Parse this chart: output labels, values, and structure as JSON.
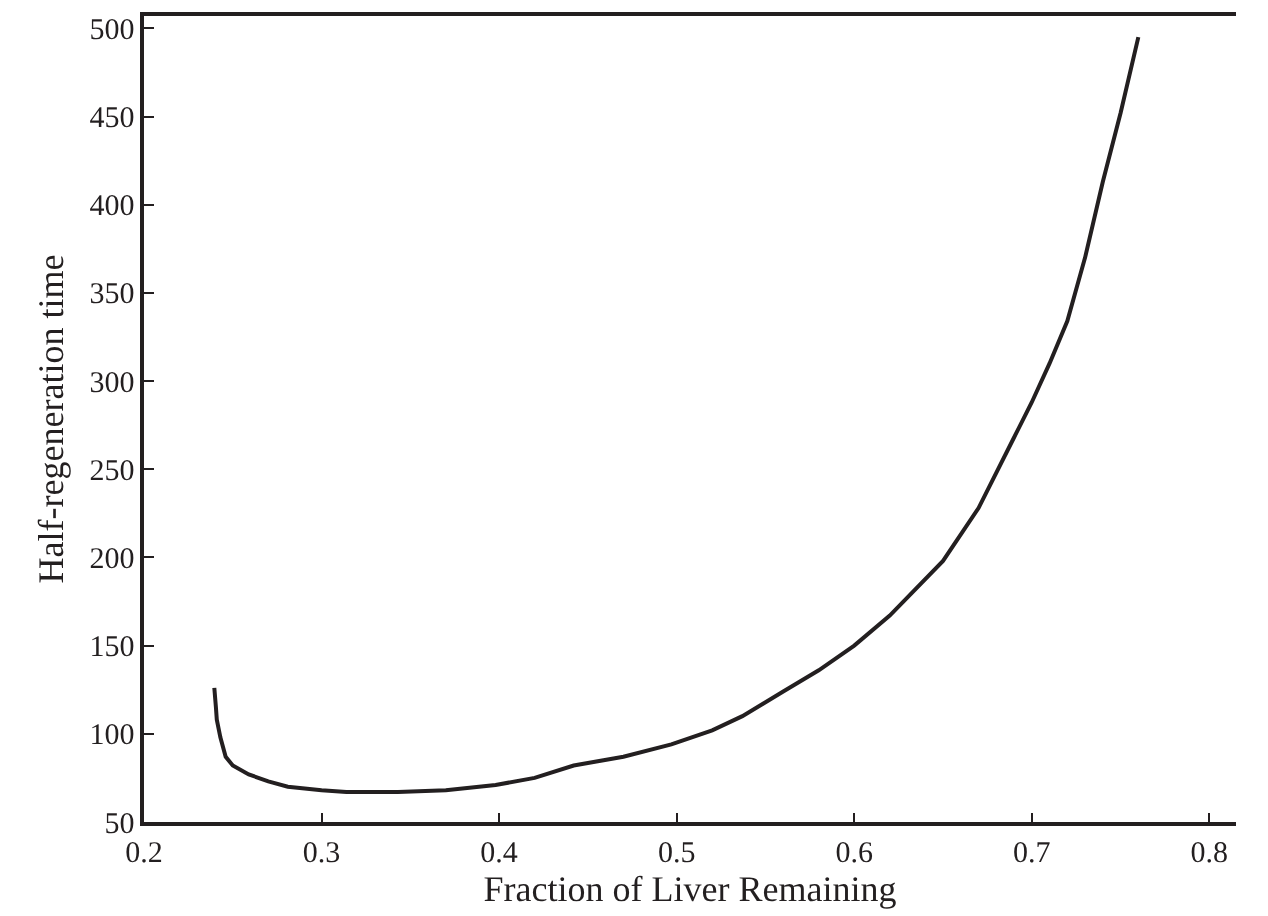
{
  "chart_data": {
    "type": "line",
    "xlabel": "Fraction of Liver Remaining",
    "ylabel": "Half-regeneration time",
    "x": [
      0.2396,
      0.2405,
      0.241,
      0.243,
      0.246,
      0.25,
      0.259,
      0.27,
      0.281,
      0.3,
      0.314,
      0.343,
      0.37,
      0.398,
      0.42,
      0.442,
      0.47,
      0.497,
      0.52,
      0.537,
      0.56,
      0.58,
      0.6,
      0.62,
      0.65,
      0.67,
      0.69,
      0.7,
      0.71,
      0.72,
      0.73,
      0.74,
      0.75,
      0.76
    ],
    "series": [
      {
        "color": "#231f20",
        "values": [
          126,
          115,
          108,
          98,
          87,
          82,
          77,
          73,
          70,
          68,
          67,
          67,
          68,
          71,
          75,
          82,
          87,
          94,
          102,
          110,
          124,
          136,
          150,
          167,
          198,
          228,
          268,
          288,
          310,
          334,
          370,
          413,
          452,
          495
        ]
      }
    ],
    "xlim": [
      0.2,
      0.815
    ],
    "xticks": [
      {
        "value": 0.2,
        "label": "0.2"
      },
      {
        "value": 0.3,
        "label": "0.3"
      },
      {
        "value": 0.4,
        "label": "0.4"
      },
      {
        "value": 0.5,
        "label": "0.5"
      },
      {
        "value": 0.6,
        "label": "0.6"
      },
      {
        "value": 0.7,
        "label": "0.7"
      },
      {
        "value": 0.8,
        "label": "0.8"
      }
    ],
    "ylim": [
      50,
      507
    ],
    "yticks": [
      50,
      100,
      150,
      200,
      250,
      300,
      350,
      400,
      450,
      500
    ],
    "grid": false,
    "marker": "none",
    "line_style": "solid"
  }
}
